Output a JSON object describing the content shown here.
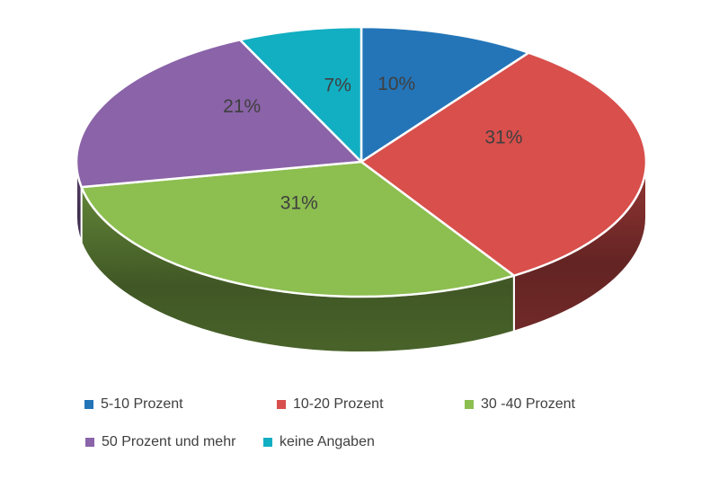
{
  "chart_data": {
    "type": "pie",
    "style": "3d",
    "start_angle_deg": 0,
    "direction": "clockwise",
    "background_color": "#FFFFFF",
    "label_color": "#3F3F3F",
    "categories": [
      "5-10 Prozent",
      "10-20 Prozent",
      "30 -40 Prozent",
      "50 Prozent und mehr",
      "keine Angaben"
    ],
    "values": [
      10,
      31,
      31,
      21,
      7
    ],
    "data_labels": [
      "10%",
      "31%",
      "31%",
      "21%",
      "7%"
    ],
    "colors": [
      "#2475B8",
      "#D84F4C",
      "#8CBE50",
      "#8A63A8",
      "#12AEC2"
    ],
    "legend": {
      "position": "bottom",
      "rows": 2
    }
  }
}
